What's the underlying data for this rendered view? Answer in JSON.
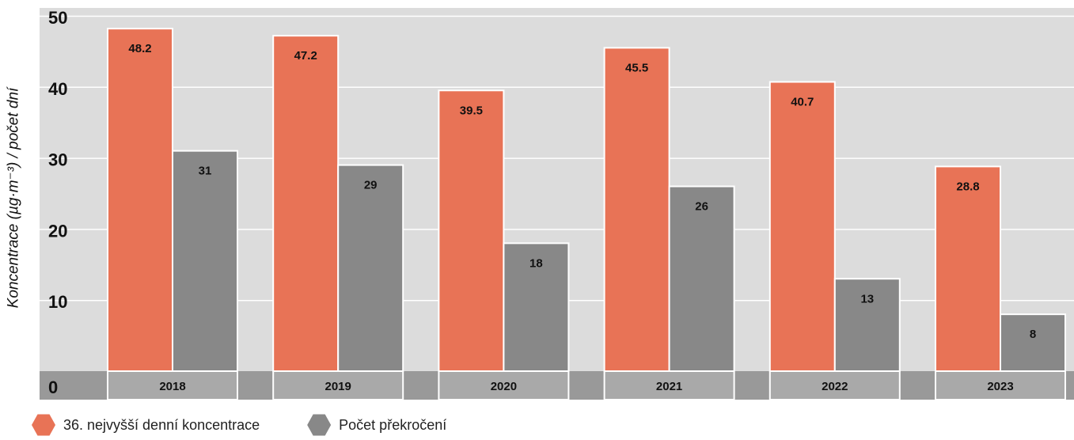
{
  "chart_data": {
    "type": "bar",
    "ylabel": "Koncentrace (µg·m⁻³) / počet dní",
    "ylim": [
      0,
      50
    ],
    "yticks": [
      0,
      10,
      20,
      30,
      40,
      50
    ],
    "grid": true,
    "legend_position": "bottom-left",
    "categories": [
      "2018",
      "2019",
      "2020",
      "2021",
      "2022",
      "2023"
    ],
    "series": [
      {
        "name": "36. nejvyšší denní koncentrace",
        "color": "#E87356",
        "values": [
          48.2,
          47.2,
          39.5,
          45.5,
          40.7,
          28.8
        ],
        "labels": [
          "48.2",
          "47.2",
          "39.5",
          "45.5",
          "40.7",
          "28.8"
        ]
      },
      {
        "name": "Počet překročení",
        "color": "#888888",
        "values": [
          31,
          29,
          18,
          26,
          13,
          8
        ],
        "labels": [
          "31",
          "29",
          "18",
          "26",
          "13",
          "8"
        ]
      }
    ]
  }
}
